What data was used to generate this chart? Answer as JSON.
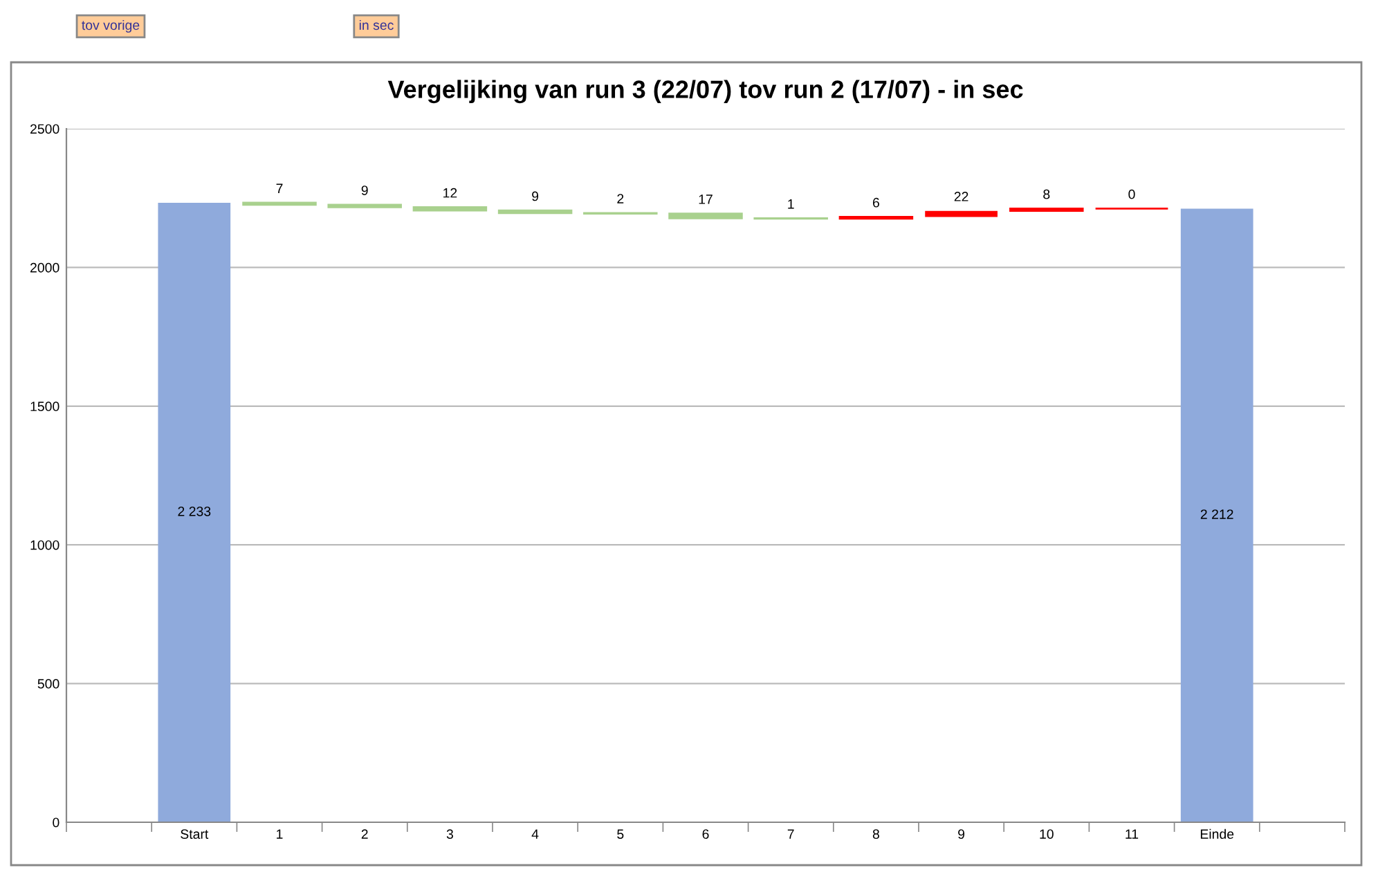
{
  "chart_data": {
    "type": "bar",
    "title": "Vergelijking van run 3 (22/07) tov run 2 (17/07) - in sec",
    "categories": [
      null,
      "Start",
      "1",
      "2",
      "3",
      "4",
      "5",
      "6",
      "7",
      "8",
      "9",
      "10",
      "11",
      "Einde",
      null
    ],
    "values": [
      null,
      2233,
      7,
      9,
      12,
      9,
      2,
      17,
      1,
      6,
      22,
      8,
      0,
      2212,
      null
    ],
    "base": [
      null,
      0,
      2226,
      2217,
      2205,
      2196,
      2194,
      2177,
      2176,
      2176,
      2182,
      2204,
      2212,
      0,
      null
    ],
    "colors": [
      "#8faadc",
      "#8faadc",
      "#a9d18e",
      "#a9d18e",
      "#a9d18e",
      "#a9d18e",
      "#a9d18e",
      "#a9d18e",
      "#a9d18e",
      "#ff0000",
      "#ff0000",
      "#ff0000",
      "#ff0000",
      "#8faadc",
      "#8faadc"
    ],
    "value_labels": [
      null,
      "2 233",
      "7",
      "9",
      "12",
      "9",
      "2",
      "17",
      "1",
      "6",
      "22",
      "8",
      "0",
      "2 212",
      null
    ],
    "ylim": [
      0,
      2500
    ],
    "yticks": [
      0,
      500,
      1000,
      1500,
      2000,
      2500
    ],
    "grid": "y",
    "annotations": [
      "tov vorige",
      "in sec"
    ]
  }
}
